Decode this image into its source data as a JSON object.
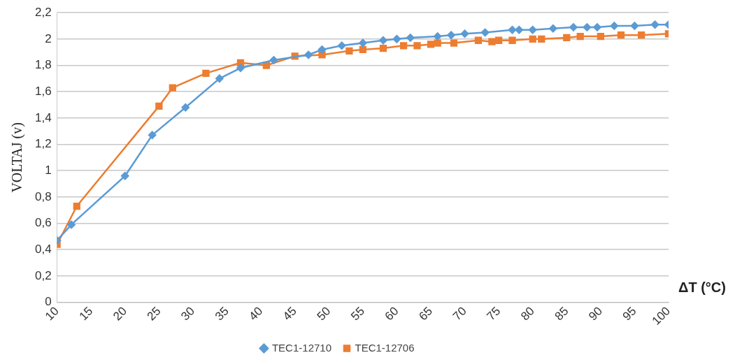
{
  "chart_data": {
    "type": "line",
    "xlabel": "ΔT (°C)",
    "ylabel": "VOLTAJ (v)",
    "xlim": [
      10,
      100
    ],
    "xticks": [
      10,
      15,
      20,
      25,
      30,
      35,
      40,
      45,
      50,
      55,
      60,
      65,
      70,
      75,
      80,
      85,
      90,
      95,
      100
    ],
    "ylim": [
      0,
      2.2
    ],
    "yticks": [
      0,
      {
        "value": 0.2,
        "label": "0,2"
      },
      {
        "value": 0.4,
        "label": "0,4"
      },
      {
        "value": 0.6,
        "label": "0,6"
      },
      {
        "value": 0.8,
        "label": "0,8"
      },
      1,
      {
        "value": 1.2,
        "label": "1,2"
      },
      {
        "value": 1.4,
        "label": "1,4"
      },
      {
        "value": 1.6,
        "label": "1,6"
      },
      {
        "value": 1.8,
        "label": "1,8"
      },
      2,
      {
        "value": 2.2,
        "label": "2,2"
      }
    ],
    "grid": "y",
    "legend": "bottom",
    "line_style": "solid",
    "series": [
      {
        "name": "TEC1-12710",
        "color": "#5b9bd5",
        "marker": "diamond",
        "x": [
          10,
          12.1,
          20,
          24,
          28.9,
          33.9,
          37,
          41.9,
          47,
          49,
          51.9,
          55,
          58,
          60,
          62,
          66,
          68,
          70,
          73,
          77,
          78,
          80,
          83,
          86,
          88,
          89.5,
          92,
          95,
          98,
          100
        ],
        "values": [
          0.47,
          0.59,
          0.96,
          1.27,
          1.48,
          1.7,
          1.78,
          1.84,
          1.88,
          1.92,
          1.95,
          1.97,
          1.99,
          2.0,
          2.01,
          2.02,
          2.03,
          2.04,
          2.05,
          2.07,
          2.07,
          2.07,
          2.08,
          2.09,
          2.09,
          2.09,
          2.1,
          2.1,
          2.11,
          2.11
        ]
      },
      {
        "name": "TEC1-12706",
        "color": "#ed7d31",
        "marker": "square",
        "x": [
          10,
          12.9,
          25,
          27,
          31.9,
          37,
          40.8,
          45,
          49,
          53,
          55,
          58,
          61,
          63,
          65,
          66,
          68.4,
          72,
          74,
          75,
          77,
          80,
          81.3,
          85,
          87,
          90,
          93,
          96,
          100
        ],
        "values": [
          0.44,
          0.73,
          1.49,
          1.63,
          1.74,
          1.82,
          1.8,
          1.87,
          1.88,
          1.91,
          1.92,
          1.93,
          1.95,
          1.95,
          1.96,
          1.97,
          1.97,
          1.99,
          1.98,
          1.99,
          1.99,
          2.0,
          2.0,
          2.01,
          2.02,
          2.02,
          2.03,
          2.03,
          2.04
        ]
      }
    ]
  }
}
